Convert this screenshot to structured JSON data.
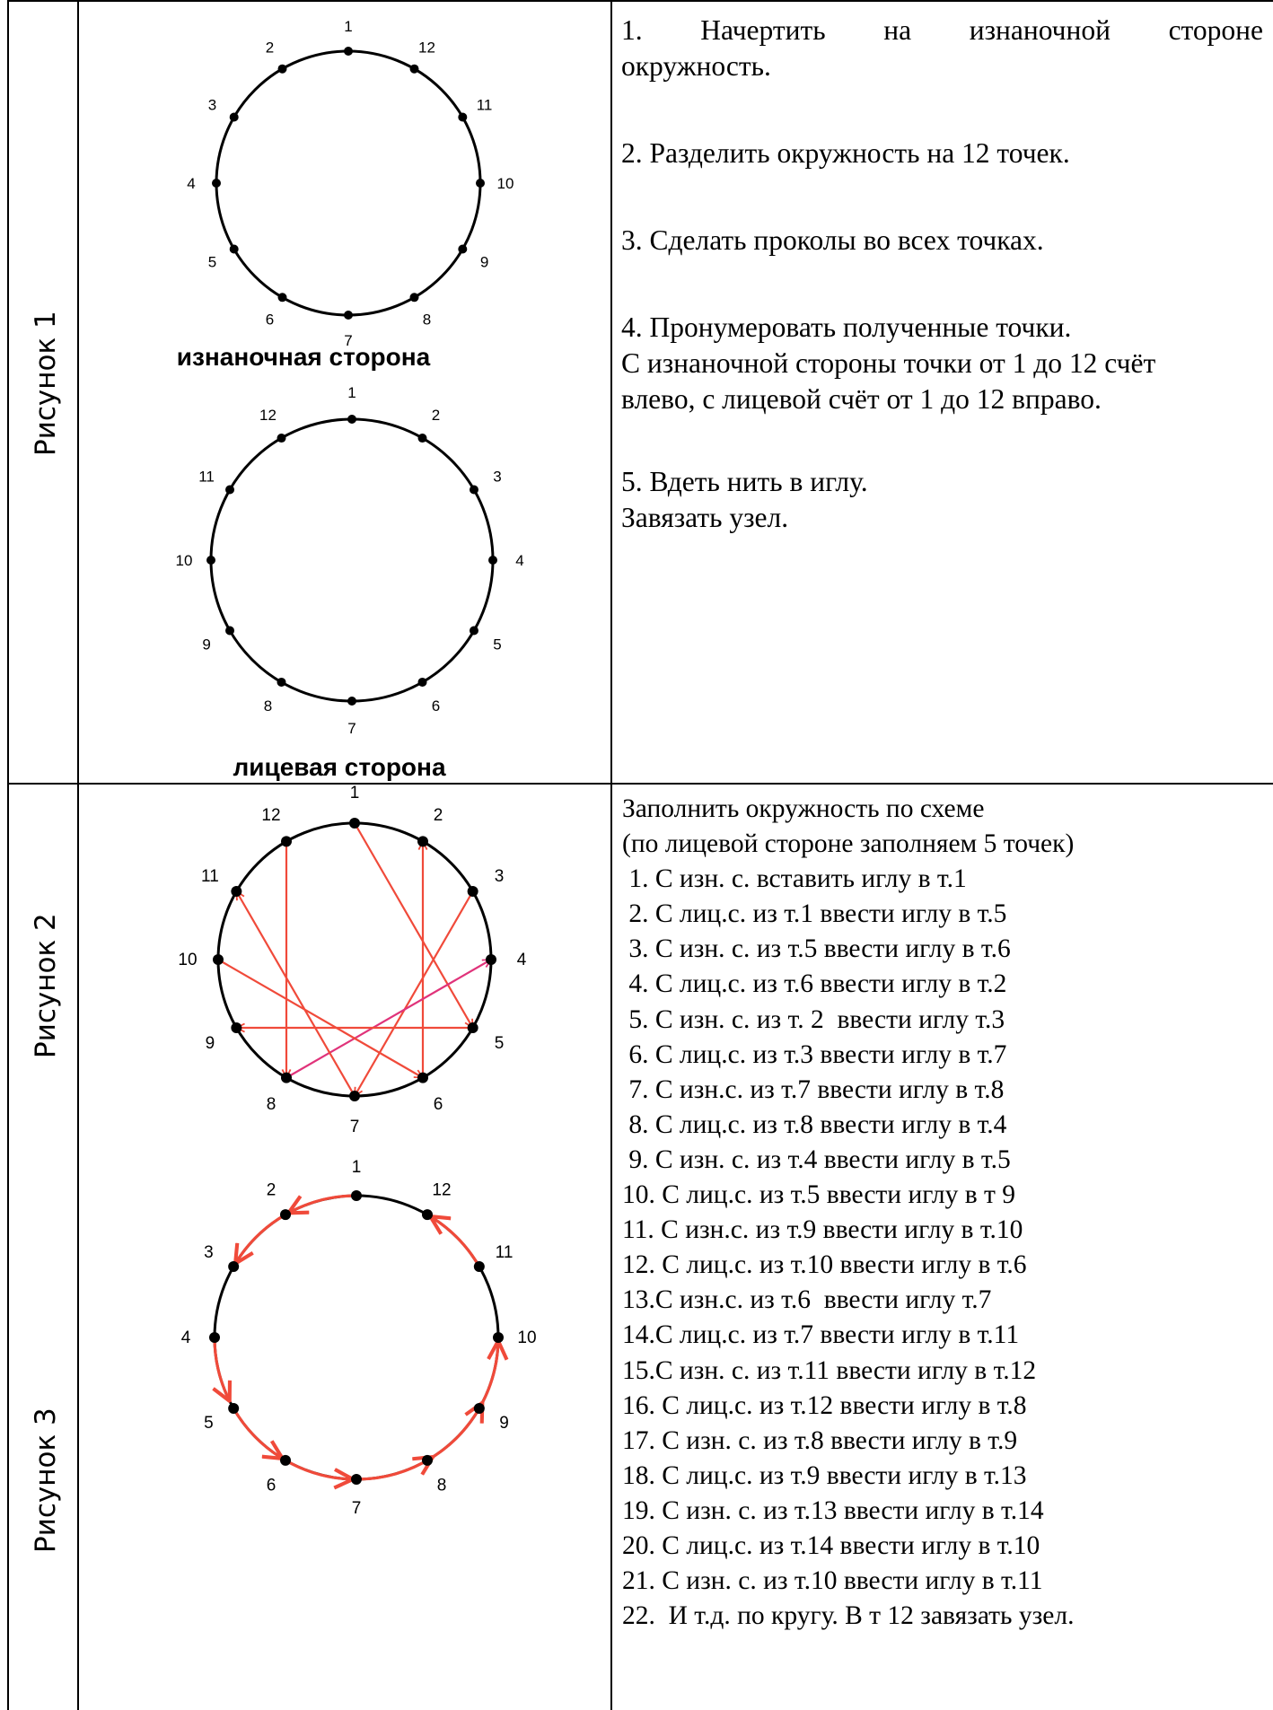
{
  "rows": [
    {
      "label": "Рисунок 1",
      "figure": {
        "top_caption": "изнаночная сторона",
        "bottom_caption": "лицевая сторона",
        "top_circle_labels": [
          "1",
          "2",
          "3",
          "4",
          "5",
          "6",
          "7",
          "8",
          "9",
          "10",
          "11",
          "12"
        ],
        "bottom_circle_labels": [
          "1",
          "2",
          "3",
          "4",
          "5",
          "6",
          "7",
          "8",
          "9",
          "10",
          "11",
          "12"
        ]
      },
      "steps": {
        "s1_line1": "1.  Начертить  на  изнаночной  стороне",
        "s1_line2": "окружность.",
        "s2": "2. Разделить окружность на 12 точек.",
        "s3": "3. Сделать проколы во всех точках.",
        "s4_line1": "4. Пронумеровать полученные точки.",
        "s4_line2": "С изнаночной стороны точки от 1 до 12 счёт",
        "s4_line3": "влево, с лицевой счёт от 1 до 12 вправо.",
        "s5_line1": "5. Вдеть нить в иглу.",
        "s5_line2": "Завязать узел."
      }
    },
    {
      "label": "Рисунок 2",
      "figure_labels": [
        "1",
        "2",
        "3",
        "4",
        "5",
        "6",
        "7",
        "8",
        "9",
        "10",
        "11",
        "12"
      ]
    },
    {
      "label": "Рисунок 3",
      "figure_labels": [
        "1",
        "2",
        "3",
        "4",
        "5",
        "6",
        "7",
        "8",
        "9",
        "10",
        "11",
        "12"
      ]
    }
  ],
  "scheme": {
    "intro1": "Заполнить окружность по схеме",
    "intro2": "(по лицевой стороне заполняем 5 точек)",
    "items": [
      " 1. С изн. с. вставить иглу в т.1",
      " 2. С лиц.с. из т.1 ввести иглу в т.5",
      " 3. С изн. с. из т.5 ввести иглу в т.6",
      " 4. С лиц.с. из т.6 ввести иглу в т.2",
      " 5. С изн. с. из т. 2  ввести иглу т.3",
      " 6. С лиц.с. из т.3 ввести иглу в т.7",
      " 7. С изн.с. из т.7 ввести иглу в т.8",
      " 8. С лиц.с. из т.8 ввести иглу в т.4",
      " 9. С изн. с. из т.4 ввести иглу в т.5",
      "10. С лиц.с. из т.5 ввести иглу в т 9",
      "11. С изн.с. из т.9 ввести иглу в т.10",
      "12. С лиц.с. из т.10 ввести иглу в т.6",
      "13.С изн.с. из т.6  ввести иглу т.7",
      "14.С лиц.с. из т.7 ввести иглу в т.11",
      "15.С изн. с. из т.11 ввести иглу в т.12",
      "16. С лиц.с. из т.12 ввести иглу в т.8",
      "17. С изн. с. из т.8 ввести иглу в т.9",
      "18. С лиц.с. из т.9 ввести иглу в т.13",
      "19. С изн. с. из т.13 ввести иглу в т.14",
      "20. С лиц.с. из т.14 ввести иглу в т.10",
      "21. С изн. с. из т.10 ввести иглу в т.11",
      "22.  И т.д. по кругу. В т 12 завязать узел."
    ]
  },
  "colors": {
    "arrow": "#f04a3a",
    "arrow_pink": "#e0337a",
    "circle": "#000000"
  }
}
